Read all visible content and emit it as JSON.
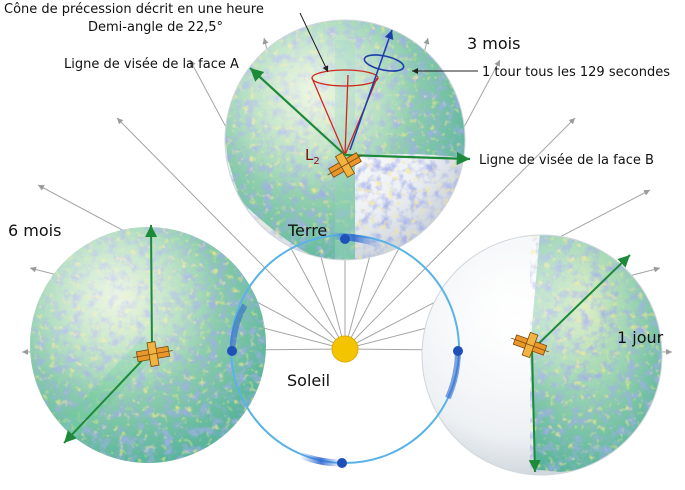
{
  "labels": {
    "cone_title": "Cône de précession décrit en une heure",
    "half_angle": "Demi-angle de 22,5°",
    "line_of_sight_a": "Ligne de visée de la face A",
    "one_turn": "1 tour tous les 129 secondes",
    "line_of_sight_b": "Ligne de visée de la face B",
    "three_months": "3 mois",
    "six_months": "6 mois",
    "one_day": "1 jour",
    "earth": "Terre",
    "sun": "Soleil",
    "l2_letter": "L",
    "l2_index": "2"
  },
  "colors": {
    "orbit": "#5ab3e6",
    "earth_dot": "#1f4fb8",
    "sun": "#f5c400",
    "sight_line": "#1d8a3a",
    "cone": "#d0281e",
    "spin_ring": "#1d3fa8",
    "ray": "#9a9a9a",
    "sphere_base": "#8fd0b5",
    "sphere_noise": "#6677c9"
  },
  "icons": {
    "probe": "satellite-icon"
  }
}
